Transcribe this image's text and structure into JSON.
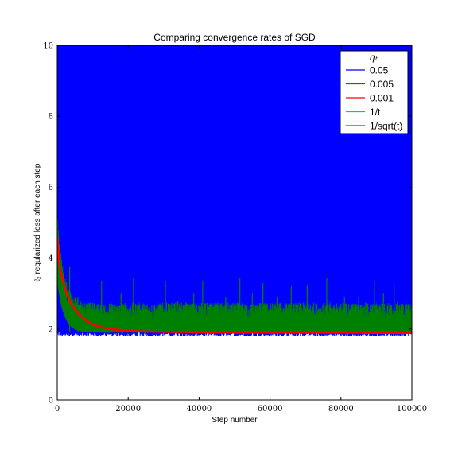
{
  "chart_data": {
    "type": "line",
    "title": "Comparing convergence rates of SGD",
    "xlabel": "Step number",
    "ylabel": "ℓ₂ regularized loss after each step",
    "xlim": [
      0,
      100000
    ],
    "ylim": [
      0,
      10
    ],
    "x_ticks": [
      0,
      20000,
      40000,
      60000,
      80000,
      100000
    ],
    "y_ticks": [
      0,
      2,
      4,
      6,
      8,
      10
    ],
    "grid": false,
    "legend_title": "ηₜ",
    "legend_position": "top-right",
    "series": [
      {
        "name": "0.05",
        "color": "#0000ff",
        "description_points": {
          "band_low": 1.8,
          "band_high": 10,
          "start": 3.3,
          "settle_step": 3500,
          "settle_value": 1.95
        }
      },
      {
        "name": "0.005",
        "color": "#008000",
        "description_points": {
          "start": 4.4,
          "baseline": 1.9,
          "band_high": 2.5,
          "spikes": [
            [
              3500,
              3.75
            ],
            [
              5800,
              2.9
            ],
            [
              12500,
              3.35
            ],
            [
              18000,
              3.0
            ],
            [
              21500,
              3.45
            ],
            [
              25000,
              2.7
            ],
            [
              30500,
              3.35
            ],
            [
              34000,
              2.8
            ],
            [
              38500,
              3.0
            ],
            [
              41000,
              3.35
            ],
            [
              47500,
              2.9
            ],
            [
              51500,
              3.45
            ],
            [
              55000,
              3.0
            ],
            [
              58000,
              3.3
            ],
            [
              62000,
              2.9
            ],
            [
              66000,
              3.2
            ],
            [
              70500,
              3.25
            ],
            [
              76000,
              3.45
            ],
            [
              81000,
              2.9
            ],
            [
              85000,
              2.9
            ],
            [
              89500,
              3.35
            ],
            [
              92000,
              3.0
            ],
            [
              95000,
              3.25
            ],
            [
              99000,
              2.7
            ]
          ]
        }
      },
      {
        "name": "0.001",
        "color": "#ff0000",
        "x": [
          0,
          500,
          1000,
          2000,
          3000,
          4000,
          5000,
          6000,
          8000,
          10000,
          12000,
          15000,
          20000,
          25000,
          30000,
          40000,
          50000,
          60000,
          70000,
          80000,
          90000,
          100000
        ],
        "y": [
          4.6,
          3.9,
          3.6,
          3.2,
          2.9,
          2.7,
          2.55,
          2.42,
          2.25,
          2.13,
          2.06,
          2.0,
          1.95,
          1.93,
          1.92,
          1.91,
          1.9,
          1.9,
          1.9,
          1.9,
          1.89,
          1.89
        ]
      },
      {
        "name": "1/t",
        "color": "#00bfbf",
        "x": [],
        "y": []
      },
      {
        "name": "1/sqrt(t)",
        "color": "#bf00bf",
        "x": [],
        "y": []
      }
    ]
  }
}
